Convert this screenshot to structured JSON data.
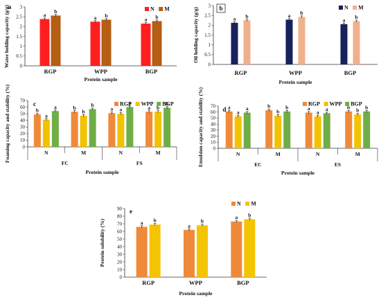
{
  "colors": {
    "N_red": "#ff1f1f",
    "M_brown": "#b55e14",
    "N_navy": "#17215c",
    "M_peach": "#f0b08c",
    "RGP_orange": "#ef8a3a",
    "WPP_yellow": "#f2c200",
    "BGP_green": "#70ad47",
    "e_N_orange": "#ef8a3a",
    "e_M_yellow": "#f4c400"
  },
  "chart_data": [
    {
      "panel": "a",
      "type": "bar",
      "ylabel": "Water holding capacity (g/g)",
      "xlabel": "Protein sample",
      "categories": [
        "RGP",
        "WPP",
        "BGP"
      ],
      "ylim": [
        0,
        3
      ],
      "yticks": [
        0,
        0.5,
        1,
        1.5,
        2,
        2.5,
        3
      ],
      "series": [
        {
          "name": "N",
          "values": [
            2.38,
            2.25,
            2.15
          ],
          "letters": [
            "a",
            "a",
            "a"
          ]
        },
        {
          "name": "M",
          "values": [
            2.56,
            2.35,
            2.28
          ],
          "letters": [
            "b",
            "b",
            "b"
          ]
        }
      ],
      "legend": "top-right",
      "grid": false
    },
    {
      "panel": "b",
      "type": "bar",
      "ylabel": "Oil holding capacity (g/g)",
      "xlabel": "Protein sample",
      "categories": [
        "RGP",
        "WPP",
        "BGP"
      ],
      "ylim": [
        0,
        3
      ],
      "yticks": [
        0,
        0.5,
        1,
        1.5,
        2,
        2.5,
        3
      ],
      "series": [
        {
          "name": "N",
          "values": [
            2.12,
            2.28,
            2.05
          ],
          "letters": [
            "a",
            "a",
            "a"
          ]
        },
        {
          "name": "M",
          "values": [
            2.25,
            2.42,
            2.2
          ],
          "letters": [
            "b",
            "b",
            "b"
          ]
        }
      ],
      "legend": "top-right",
      "grid": false
    },
    {
      "panel": "c",
      "type": "bar",
      "ylabel": "Foaming capacity and stability (%)",
      "xlabel": "Protein sample",
      "categories": [
        "N",
        "M",
        "N",
        "M"
      ],
      "groups": [
        "FC",
        "FS"
      ],
      "ylim": [
        0,
        70
      ],
      "yticks": [
        0,
        10,
        20,
        30,
        40,
        50,
        60,
        70
      ],
      "series": [
        {
          "name": "RGP",
          "values": [
            49,
            53,
            51,
            53
          ],
          "letters": [
            "b",
            "b",
            "a",
            "a"
          ]
        },
        {
          "name": "WPP",
          "values": [
            41,
            47,
            50,
            53
          ],
          "letters": [
            "a",
            "b",
            "a",
            "b"
          ]
        },
        {
          "name": "BGP",
          "values": [
            54,
            57,
            60,
            59
          ],
          "letters": [
            "a",
            "b",
            "a",
            "b"
          ]
        }
      ],
      "legend": "top-right",
      "grid": false
    },
    {
      "panel": "d",
      "type": "bar",
      "ylabel": "Emulsion capacity and stability (%)",
      "xlabel": "Protein sample",
      "categories": [
        "N",
        "M",
        "N",
        "M"
      ],
      "groups": [
        "EC",
        "ES"
      ],
      "ylim": [
        0,
        70
      ],
      "yticks": [
        0,
        10,
        20,
        30,
        40,
        50,
        60,
        70
      ],
      "series": [
        {
          "name": "RGP",
          "values": [
            61,
            63,
            59,
            61
          ],
          "letters": [
            "a",
            "b",
            "a",
            "b"
          ]
        },
        {
          "name": "WPP",
          "values": [
            53,
            54,
            53,
            56
          ],
          "letters": [
            "a",
            "b",
            "a",
            "b"
          ]
        },
        {
          "name": "BGP",
          "values": [
            59,
            61,
            58,
            61
          ],
          "letters": [
            "a",
            "b",
            "a",
            "b"
          ]
        }
      ],
      "legend": "top-right",
      "grid": false
    },
    {
      "panel": "e",
      "type": "bar",
      "ylabel": "Protein solubility (%)",
      "xlabel": "Protein sample",
      "categories": [
        "RGP",
        "WPP",
        "BGP"
      ],
      "ylim": [
        0,
        90
      ],
      "yticks": [
        0,
        10,
        20,
        30,
        40,
        50,
        60,
        70,
        80,
        90
      ],
      "series": [
        {
          "name": "N",
          "values": [
            66,
            62,
            73
          ],
          "letters": [
            "a",
            "a",
            "a"
          ]
        },
        {
          "name": "M",
          "values": [
            69,
            68,
            76
          ],
          "letters": [
            "b",
            "b",
            "b"
          ]
        }
      ],
      "legend": "top-right",
      "grid": false
    }
  ]
}
